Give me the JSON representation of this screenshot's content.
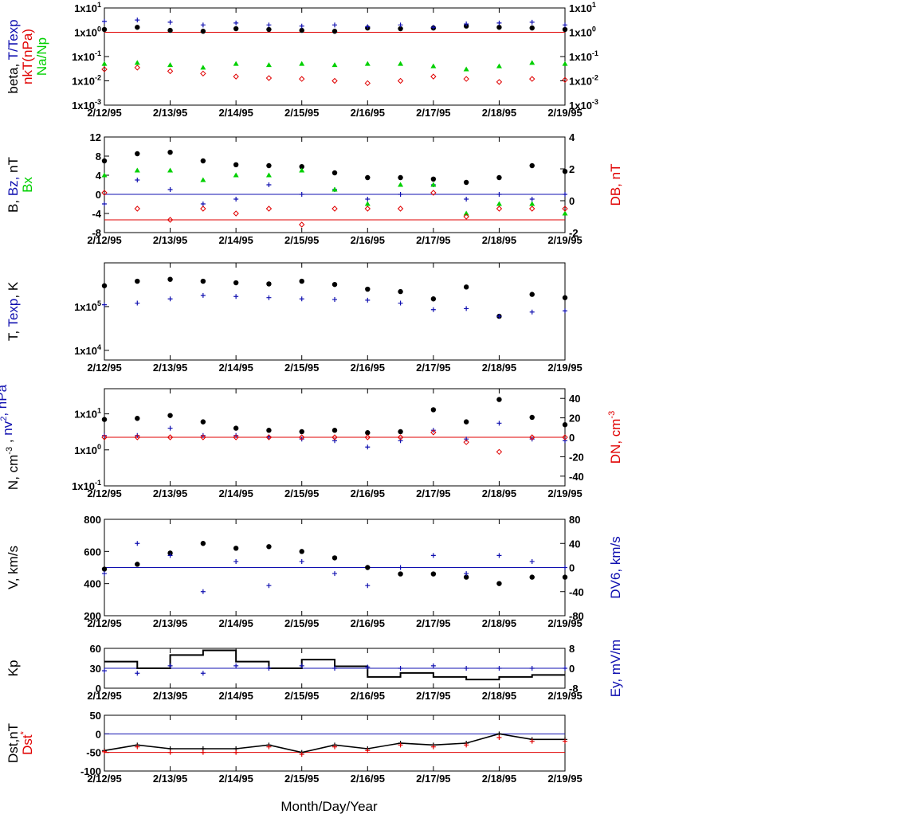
{
  "figure": {
    "xlabel": "Month/Day/Year",
    "date_ticks": [
      "2/12/95",
      "2/13/95",
      "2/14/95",
      "2/15/95",
      "2/16/95",
      "2/17/95",
      "2/18/95",
      "2/19/95"
    ],
    "colors": {
      "black": "#000000",
      "red": "#e00000",
      "blue": "#1010b0",
      "green": "#00d000"
    }
  },
  "chart_data": [
    {
      "type": "scatter",
      "panel": "beta",
      "scale": "log",
      "ylim": [
        0.001,
        10
      ],
      "yticks_left": [
        "1x10-3",
        "1x10-2",
        "1x10-1",
        "1x100",
        "1x101"
      ],
      "yticks_right": [
        "1x10-3",
        "1x10-2",
        "1x10-1",
        "1x100",
        "1x101"
      ],
      "ylabel_parts": [
        {
          "text": "beta, ",
          "color": "#000000"
        },
        {
          "text": "T/Texp",
          "color": "#1010b0"
        },
        {
          "text": "nkT(nPa)",
          "color": "#e00000"
        },
        {
          "text": "Na/Np",
          "color": "#00d000"
        }
      ],
      "hlines": [
        {
          "y": 1,
          "color": "#e00000"
        }
      ],
      "series": [
        {
          "name": "beta",
          "color": "#000000",
          "marker": "dot",
          "x": [
            0,
            0.5,
            1,
            1.5,
            2,
            2.5,
            3,
            3.5,
            4,
            4.5,
            5,
            5.5,
            6,
            6.5,
            7
          ],
          "y": [
            1.3,
            1.6,
            1.2,
            1.1,
            1.4,
            1.3,
            1.2,
            1.1,
            1.5,
            1.4,
            1.5,
            1.8,
            1.6,
            1.5,
            1.3
          ]
        },
        {
          "name": "T/Texp",
          "color": "#1010b0",
          "marker": "plus",
          "x": [
            0,
            0.5,
            1,
            1.5,
            2,
            2.5,
            3,
            3.5,
            4,
            4.5,
            5,
            5.5,
            6,
            6.5,
            7
          ],
          "y": [
            2.8,
            3.2,
            2.6,
            2.0,
            2.4,
            2.0,
            1.8,
            2.0,
            1.7,
            2.0,
            1.6,
            2.2,
            2.4,
            2.6,
            2.0
          ]
        },
        {
          "name": "nkT(nPa)",
          "color": "#e00000",
          "marker": "diamond",
          "x": [
            0,
            0.5,
            1,
            1.5,
            2,
            2.5,
            3,
            3.5,
            4,
            4.5,
            5,
            5.5,
            6,
            6.5,
            7
          ],
          "y": [
            0.03,
            0.035,
            0.025,
            0.02,
            0.015,
            0.013,
            0.012,
            0.01,
            0.008,
            0.01,
            0.015,
            0.012,
            0.009,
            0.012,
            0.011
          ]
        },
        {
          "name": "Na/Np",
          "color": "#00d000",
          "marker": "triangle",
          "x": [
            0,
            0.5,
            1,
            1.5,
            2,
            2.5,
            3,
            3.5,
            4,
            4.5,
            5,
            5.5,
            6,
            6.5,
            7
          ],
          "y": [
            0.05,
            0.055,
            0.045,
            0.035,
            0.05,
            0.045,
            0.05,
            0.045,
            0.05,
            0.05,
            0.04,
            0.03,
            0.04,
            0.055,
            0.05
          ]
        }
      ]
    },
    {
      "type": "scatter",
      "panel": "imf",
      "scale": "linear",
      "ylim": [
        -8,
        12
      ],
      "ylim_right": [
        -2,
        4
      ],
      "yticks_left": [
        "-8",
        "-4",
        "0",
        "4",
        "8",
        "12"
      ],
      "yticks_right": [
        "-2",
        "0",
        "2",
        "4"
      ],
      "ylabel_parts": [
        {
          "text": "B, ",
          "color": "#000000"
        },
        {
          "text": "Bz, ",
          "color": "#1010b0"
        },
        {
          "text": "nT",
          "color": "#000000"
        },
        {
          "text": "Bx",
          "color": "#00d000"
        }
      ],
      "ylabel_right": {
        "text": "DB, nT",
        "color": "#e00000"
      },
      "hlines": [
        {
          "y": 0,
          "color": "#1010b0"
        },
        {
          "y": -1.2,
          "color": "#e00000"
        }
      ],
      "series": [
        {
          "name": "B",
          "color": "#000000",
          "marker": "dot",
          "x": [
            0,
            0.5,
            1,
            1.5,
            2,
            2.5,
            3,
            3.5,
            4,
            4.5,
            5,
            5.5,
            6,
            6.5,
            7
          ],
          "y": [
            7,
            8.5,
            8.8,
            7,
            6.2,
            6.0,
            5.8,
            4.5,
            3.5,
            3.5,
            3.2,
            2.5,
            3.5,
            6.0,
            4.8
          ]
        },
        {
          "name": "Bz",
          "color": "#1010b0",
          "marker": "plus",
          "x": [
            0,
            0.5,
            1,
            1.5,
            2,
            2.5,
            3,
            3.5,
            4,
            4.5,
            5,
            5.5,
            6,
            6.5,
            7
          ],
          "y": [
            -2,
            3,
            1,
            -2,
            -1,
            2,
            0,
            1,
            -1,
            0,
            2,
            -1,
            0,
            -1,
            0
          ]
        },
        {
          "name": "Bx",
          "color": "#00d000",
          "marker": "triangle",
          "x": [
            0,
            0.5,
            1,
            1.5,
            2,
            2.5,
            3,
            3.5,
            4,
            4.5,
            5,
            5.5,
            6,
            6.5,
            7
          ],
          "y": [
            4,
            5,
            5,
            3,
            4,
            4,
            5,
            1,
            -2,
            2,
            2,
            -4,
            -2,
            -2,
            -4
          ]
        },
        {
          "name": "DB",
          "color": "#e00000",
          "marker": "diamond",
          "y_axis": "right",
          "x": [
            0,
            0.5,
            1,
            1.5,
            2,
            2.5,
            3,
            3.5,
            4,
            4.5,
            5,
            5.5,
            6,
            6.5,
            7
          ],
          "y": [
            0.5,
            -0.5,
            -1.2,
            -0.5,
            -0.8,
            -0.5,
            -1.5,
            -0.5,
            -0.5,
            -0.5,
            0.5,
            -1.0,
            -0.5,
            -0.5,
            -0.5
          ]
        }
      ]
    },
    {
      "type": "scatter",
      "panel": "temperature",
      "scale": "log",
      "ylim": [
        6000,
        1000000
      ],
      "yticks_left": [
        "1x104",
        "1x105"
      ],
      "ylabel_parts": [
        {
          "text": "T, ",
          "color": "#000000"
        },
        {
          "text": "Texp",
          "color": "#1010b0"
        },
        {
          "text": ", K",
          "color": "#000000"
        }
      ],
      "series": [
        {
          "name": "T",
          "color": "#000000",
          "marker": "dot",
          "x": [
            0,
            0.5,
            1,
            1.5,
            2,
            2.5,
            3,
            3.5,
            4,
            4.5,
            5,
            5.5,
            6,
            6.5,
            7
          ],
          "y": [
            300000,
            380000,
            420000,
            380000,
            350000,
            330000,
            380000,
            320000,
            250000,
            220000,
            150000,
            280000,
            60000,
            190000,
            160000
          ]
        },
        {
          "name": "Texp",
          "color": "#1010b0",
          "marker": "plus",
          "x": [
            0,
            0.5,
            1,
            1.5,
            2,
            2.5,
            3,
            3.5,
            4,
            4.5,
            5,
            5.5,
            6,
            6.5,
            7
          ],
          "y": [
            110000,
            120000,
            150000,
            180000,
            170000,
            160000,
            150000,
            145000,
            140000,
            120000,
            85000,
            90000,
            60000,
            75000,
            80000
          ]
        }
      ]
    },
    {
      "type": "scatter",
      "panel": "density",
      "scale": "log",
      "ylim": [
        0.1,
        50
      ],
      "ylim_right": [
        -50,
        50
      ],
      "yticks_left": [
        "1x10-1",
        "1x100",
        "1x101"
      ],
      "yticks_right": [
        "-40",
        "-20",
        "0",
        "20",
        "40"
      ],
      "ylabel_parts": [
        {
          "text": "N, cm",
          "color": "#000000",
          "sup": "-3"
        },
        {
          "text": " , ",
          "color": "#000000"
        },
        {
          "text": "nv",
          "color": "#1010b0",
          "sup": "2"
        },
        {
          "text": ", nPa",
          "color": "#1010b0"
        }
      ],
      "ylabel_right": {
        "text": "DN, cm",
        "color": "#e00000",
        "sup": "-3"
      },
      "hlines": [
        {
          "y": 0,
          "color": "#e00000",
          "y_axis": "right"
        }
      ],
      "series": [
        {
          "name": "N",
          "color": "#000000",
          "marker": "dot",
          "x": [
            0,
            0.5,
            1,
            1.5,
            2,
            2.5,
            3,
            3.5,
            4,
            4.5,
            5,
            5.5,
            6,
            6.5,
            7
          ],
          "y": [
            7,
            7.5,
            9,
            6,
            4,
            3.5,
            3.2,
            3.5,
            3.0,
            3.2,
            13,
            6,
            25,
            8,
            5
          ]
        },
        {
          "name": "nv2",
          "color": "#1010b0",
          "marker": "plus",
          "x": [
            0,
            0.5,
            1,
            1.5,
            2,
            2.5,
            3,
            3.5,
            4,
            4.5,
            5,
            5.5,
            6,
            6.5,
            7
          ],
          "y": [
            2.5,
            2.5,
            4,
            2.5,
            2.5,
            2.3,
            2.0,
            1.8,
            1.2,
            1.8,
            3.5,
            2.0,
            5.5,
            2.0,
            1.8
          ]
        },
        {
          "name": "DN",
          "color": "#e00000",
          "marker": "diamond",
          "y_axis": "right",
          "x": [
            0,
            0.5,
            1,
            1.5,
            2,
            2.5,
            3,
            3.5,
            4,
            4.5,
            5,
            5.5,
            6,
            6.5,
            7
          ],
          "y": [
            0,
            0,
            0,
            0,
            0,
            0,
            0,
            0,
            0,
            0,
            5,
            -5,
            -15,
            0,
            0
          ]
        }
      ]
    },
    {
      "type": "scatter",
      "panel": "velocity",
      "scale": "linear",
      "ylim": [
        200,
        800
      ],
      "ylim_right": [
        -80,
        80
      ],
      "yticks_left": [
        "200",
        "400",
        "600",
        "800"
      ],
      "yticks_right": [
        "-80",
        "-40",
        "0",
        "40",
        "80"
      ],
      "ylabel_parts": [
        {
          "text": "V, km/s",
          "color": "#000000"
        }
      ],
      "ylabel_right": {
        "text": "DV6, km/s",
        "color": "#1010b0"
      },
      "hlines": [
        {
          "y": 0,
          "color": "#1010b0",
          "y_axis": "right"
        }
      ],
      "series": [
        {
          "name": "V",
          "color": "#000000",
          "marker": "dot",
          "x": [
            0,
            0.5,
            1,
            1.5,
            2,
            2.5,
            3,
            3.5,
            4,
            4.5,
            5,
            5.5,
            6,
            6.5,
            7
          ],
          "y": [
            490,
            520,
            590,
            650,
            620,
            630,
            600,
            560,
            500,
            460,
            460,
            440,
            400,
            440,
            440
          ]
        },
        {
          "name": "DV6",
          "color": "#1010b0",
          "marker": "plus",
          "y_axis": "right",
          "x": [
            0,
            0.5,
            1,
            1.5,
            2,
            2.5,
            3,
            3.5,
            4,
            4.5,
            5,
            5.5,
            6,
            6.5,
            7
          ],
          "y": [
            -10,
            40,
            20,
            -40,
            10,
            -30,
            10,
            -10,
            -30,
            0,
            20,
            -10,
            20,
            10,
            0
          ]
        }
      ]
    },
    {
      "type": "line",
      "panel": "kp",
      "scale": "linear",
      "ylim": [
        0,
        60
      ],
      "ylim_right": [
        -8,
        8
      ],
      "yticks_left": [
        "0",
        "30",
        "60"
      ],
      "yticks_right": [
        "-8",
        "0",
        "8"
      ],
      "ylabel_parts": [
        {
          "text": "Kp",
          "color": "#000000"
        }
      ],
      "ylabel_right": {
        "text": "Ey,  mV/m",
        "color": "#1010b0"
      },
      "hlines": [
        {
          "y": 0,
          "color": "#1010b0",
          "y_axis": "right"
        }
      ],
      "series": [
        {
          "name": "Kp",
          "color": "#000000",
          "marker": "step",
          "x": [
            0,
            0.5,
            1,
            1.5,
            2,
            2.5,
            3,
            3.5,
            4,
            4.5,
            5,
            5.5,
            6,
            6.5,
            7
          ],
          "y": [
            40,
            30,
            50,
            57,
            40,
            30,
            43,
            33,
            17,
            23,
            17,
            13,
            17,
            20,
            20
          ]
        },
        {
          "name": "Ey",
          "color": "#1010b0",
          "marker": "plus",
          "y_axis": "right",
          "x": [
            0,
            0.5,
            1,
            1.5,
            2,
            2.5,
            3,
            3.5,
            4,
            4.5,
            5,
            5.5,
            6,
            6.5,
            7
          ],
          "y": [
            -1,
            -2,
            1,
            -2,
            1,
            0,
            1,
            0,
            0.5,
            0,
            1,
            0,
            0,
            0,
            0
          ]
        }
      ]
    },
    {
      "type": "line",
      "panel": "dst",
      "scale": "linear",
      "ylim": [
        -100,
        50
      ],
      "yticks_left": [
        "-100",
        "-50",
        "0",
        "50"
      ],
      "ylabel_parts": [
        {
          "text": "Dst,nT",
          "color": "#000000"
        },
        {
          "text": "Dst",
          "color": "#e00000",
          "sup": "*"
        }
      ],
      "hlines": [
        {
          "y": 0,
          "color": "#1010b0"
        },
        {
          "y": -50,
          "color": "#e00000"
        }
      ],
      "series": [
        {
          "name": "Dst",
          "color": "#000000",
          "marker": "line",
          "x": [
            0,
            0.5,
            1,
            1.5,
            2,
            2.5,
            3,
            3.5,
            4,
            4.5,
            5,
            5.5,
            6,
            6.5,
            7
          ],
          "y": [
            -45,
            -30,
            -40,
            -40,
            -40,
            -30,
            -50,
            -30,
            -40,
            -25,
            -30,
            -25,
            0,
            -15,
            -15
          ]
        },
        {
          "name": "Dst*",
          "color": "#e00000",
          "marker": "plus",
          "x": [
            0,
            0.5,
            1,
            1.5,
            2,
            2.5,
            3,
            3.5,
            4,
            4.5,
            5,
            5.5,
            6,
            6.5,
            7
          ],
          "y": [
            -48,
            -35,
            -50,
            -50,
            -50,
            -35,
            -55,
            -35,
            -45,
            -30,
            -35,
            -30,
            -10,
            -20,
            -20
          ]
        }
      ]
    }
  ]
}
